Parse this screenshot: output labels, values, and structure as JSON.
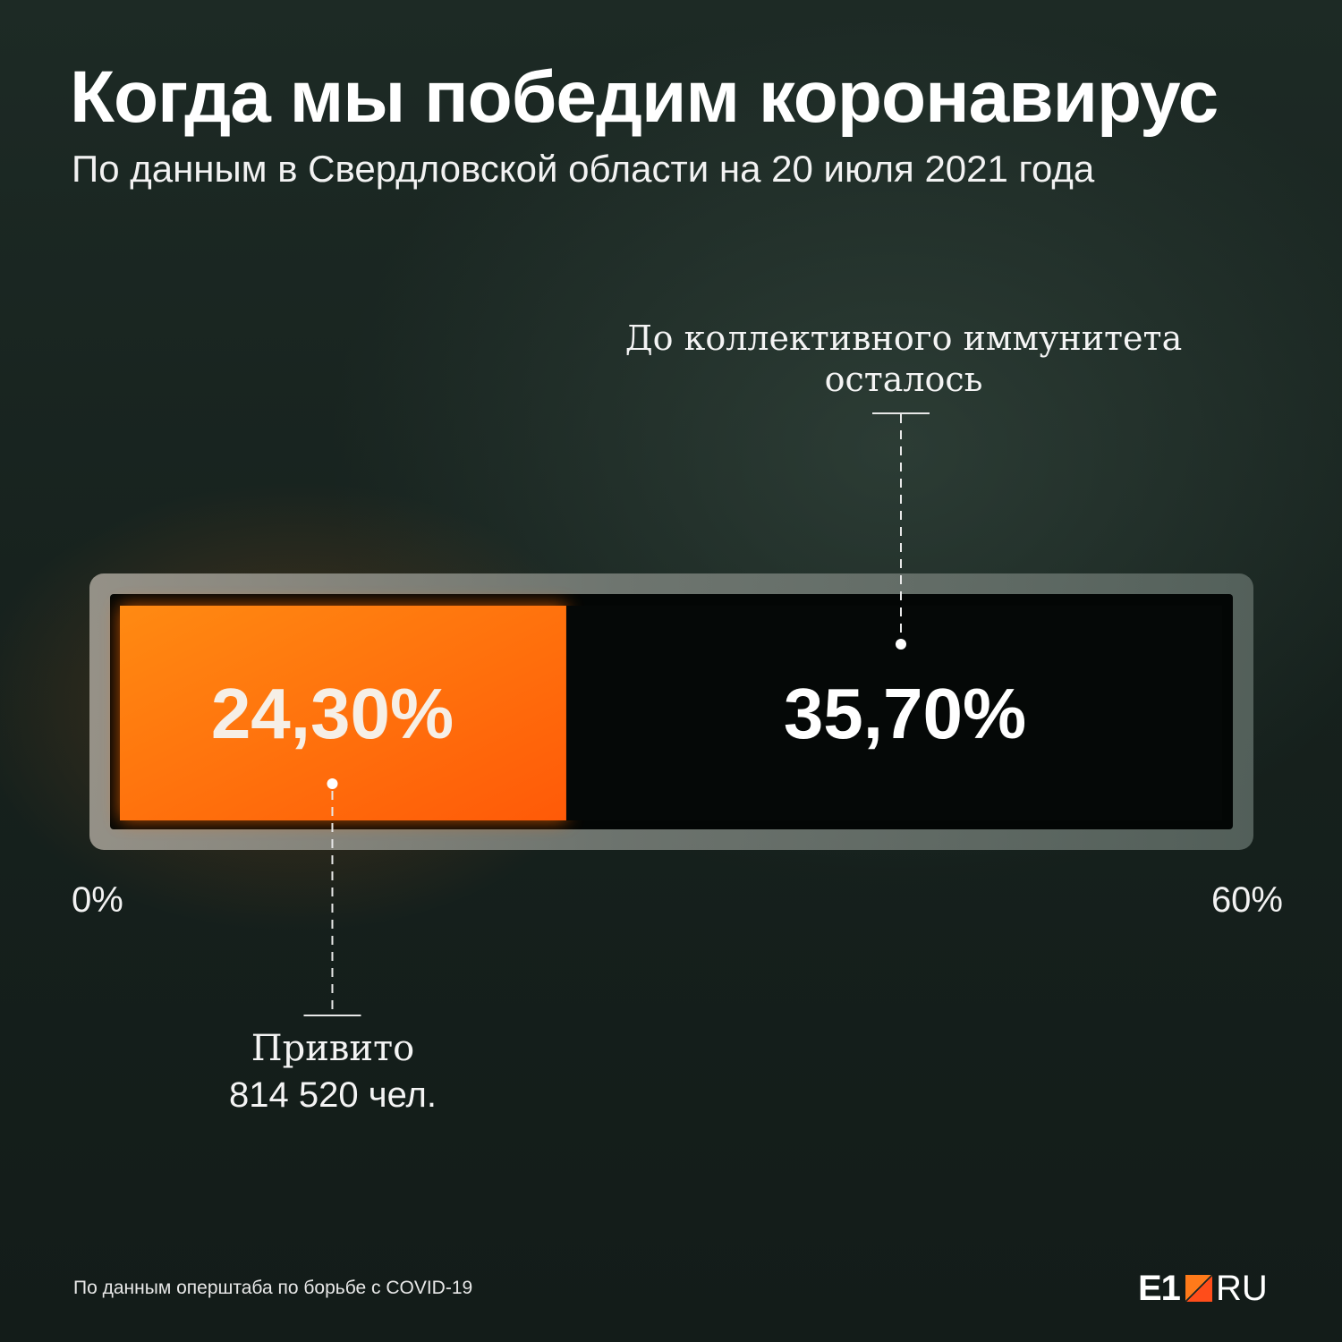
{
  "title": "Когда мы победим коронавирус",
  "subtitle": "По данным в Свердловской области на 20 июля 2021 года",
  "chart_data": {
    "type": "bar",
    "orientation": "horizontal-stacked",
    "xlim": [
      0,
      60
    ],
    "axis_min_label": "0%",
    "axis_max_label": "60%",
    "segments": [
      {
        "value": 24.3,
        "value_label": "24,30%",
        "annotation": [
          "Привито",
          "814 520 чел."
        ],
        "color": "#ff6a0a"
      },
      {
        "value": 35.7,
        "value_label": "35,70%",
        "annotation": [
          "До коллективного иммунитета",
          "осталось"
        ],
        "color": "#050807"
      }
    ]
  },
  "source": "По данным оперштаба по борьбе с COVID-19",
  "logo": {
    "left": "E1",
    "right": "RU"
  },
  "colors": {
    "accent": "#ff6a0a",
    "background": "#17221e",
    "frame": "#6f7a74"
  }
}
